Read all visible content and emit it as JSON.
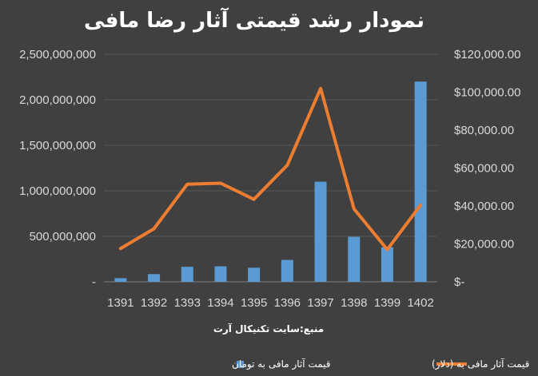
{
  "chart_data": {
    "type": "bar",
    "title": "نمودار رشد قیمتی آثار رضا مافی",
    "source": "منبع:سایت تکنیکال آرت",
    "categories": [
      "1391",
      "1392",
      "1393",
      "1394",
      "1395",
      "1396",
      "1397",
      "1398",
      "1399",
      "1402"
    ],
    "series": [
      {
        "name": "قیمت آثار مافی به تومان",
        "type": "bar",
        "axis": "left",
        "color": "#5b9bd5",
        "values": [
          40000000,
          85000000,
          165000000,
          170000000,
          155000000,
          240000000,
          1100000000,
          495000000,
          380000000,
          2200000000
        ]
      },
      {
        "name": "قیمت آثار مافی به (دلار)",
        "type": "line",
        "axis": "right",
        "color": "#ed7d31",
        "values": [
          17500,
          28000,
          51500,
          52000,
          43500,
          61500,
          102000,
          38500,
          17000,
          40500
        ]
      }
    ],
    "y_left": {
      "min": 0,
      "max": 2500000000,
      "tick_labels": [
        "-",
        "500,000,000",
        "1,000,000,000",
        "1,500,000,000",
        "2,000,000,000",
        "2,500,000,000"
      ]
    },
    "y_right": {
      "min": 0,
      "max": 120000,
      "tick_labels": [
        "$-",
        "$20,000.00",
        "$40,000.00",
        "$60,000.00",
        "$80,000.00",
        "$100,000.00",
        "$120,000.00"
      ]
    },
    "grid": true,
    "legend_position": "bottom"
  }
}
